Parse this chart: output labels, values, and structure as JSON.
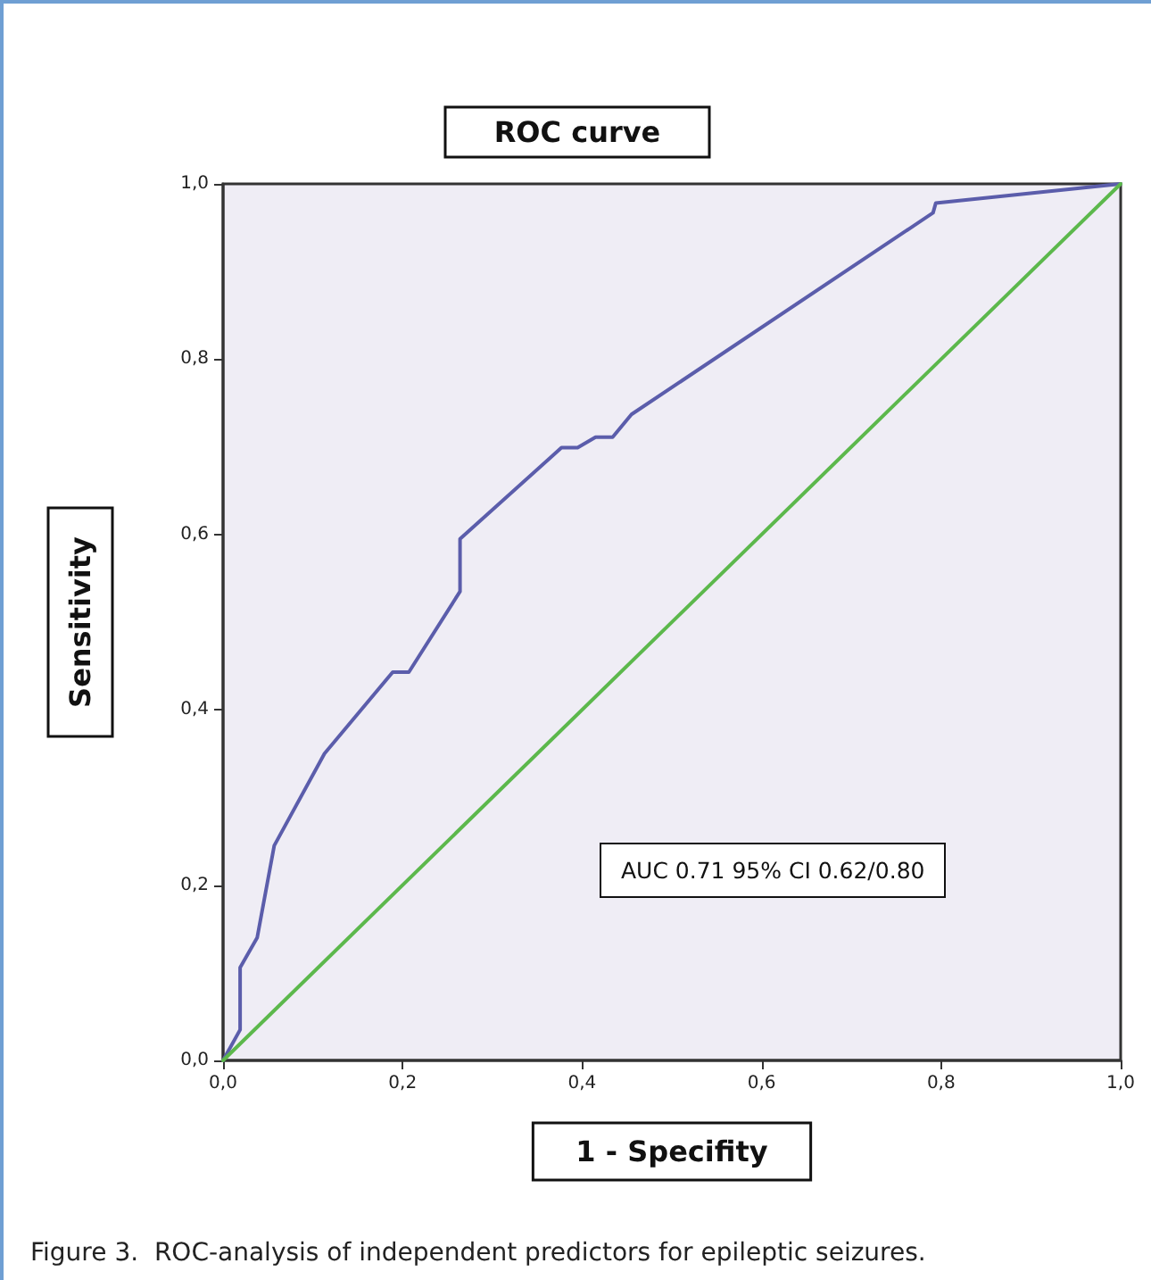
{
  "chart_data": {
    "type": "line",
    "title": "ROC curve",
    "xlabel": "1 - Specifity",
    "ylabel": "Sensitivity",
    "annotations": [
      "AUC 0.71 95% CI 0.62/0.80",
      "Figure 3.  ROC-analysis of independent predictors for epileptic seizures."
    ],
    "series": [
      {
        "color": "#5b5dab",
        "x": [
          0,
          0.019,
          0.019,
          0.038,
          0.057,
          0.113,
          0.189,
          0.207,
          0.264,
          0.264,
          0.377,
          0.395,
          0.415,
          0.434,
          0.455,
          0.791,
          0.794,
          1
        ],
        "values": [
          0,
          0.035,
          0.106,
          0.14,
          0.245,
          0.35,
          0.443,
          0.443,
          0.535,
          0.595,
          0.699,
          0.699,
          0.711,
          0.711,
          0.737,
          0.967,
          0.978,
          1
        ]
      },
      {
        "color": "#5cb84c",
        "x": [
          0,
          1
        ],
        "values": [
          0,
          1
        ]
      }
    ],
    "xlim": [
      0,
      1
    ],
    "ylim": [
      0,
      1
    ],
    "xticks": [
      {
        "value": 0,
        "label": "0,0"
      },
      {
        "value": 0.2,
        "label": "0,2"
      },
      {
        "value": 0.4,
        "label": "0,4"
      },
      {
        "value": 0.6,
        "label": "0,6"
      },
      {
        "value": 0.8,
        "label": "0,8"
      },
      {
        "value": 1,
        "label": "1,0"
      }
    ],
    "yticks": [
      {
        "value": 0,
        "label": "0,0"
      },
      {
        "value": 0.2,
        "label": "0,2"
      },
      {
        "value": 0.4,
        "label": "0,4"
      },
      {
        "value": 0.6,
        "label": "0,6"
      },
      {
        "value": 0.8,
        "label": "0,8"
      },
      {
        "value": 1,
        "label": "1,0"
      }
    ],
    "grid": false,
    "marker": "none",
    "line_style": "solid"
  }
}
